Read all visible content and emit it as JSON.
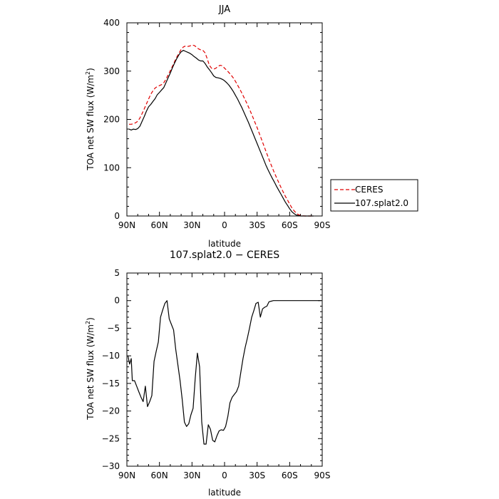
{
  "chart_data": [
    {
      "type": "line",
      "title": "JJA",
      "xlabel": "latitude",
      "ylabel": "TOA net SW flux (W/m²)",
      "ylabel_parts": {
        "main": "TOA net SW flux (W/m",
        "sup": "2",
        "tail": ")"
      },
      "xlim": [
        90,
        -90
      ],
      "ylim": [
        0,
        400
      ],
      "x_ticks": [
        {
          "value": 90,
          "label": "90N"
        },
        {
          "value": 60,
          "label": "60N"
        },
        {
          "value": 30,
          "label": "30N"
        },
        {
          "value": 0,
          "label": "0"
        },
        {
          "value": -30,
          "label": "30S"
        },
        {
          "value": -60,
          "label": "60S"
        },
        {
          "value": -90,
          "label": "90S"
        }
      ],
      "y_ticks": [
        {
          "value": 0,
          "label": "0"
        },
        {
          "value": 100,
          "label": "100"
        },
        {
          "value": 200,
          "label": "200"
        },
        {
          "value": 300,
          "label": "300"
        },
        {
          "value": 400,
          "label": "400"
        }
      ],
      "legend_position": "outside-right-bottom",
      "series": [
        {
          "name": "CERES",
          "color": "#e00000",
          "dash": "dashed",
          "x": [
            88,
            86,
            84,
            82,
            80,
            78,
            76,
            74,
            72,
            70,
            68,
            66,
            64,
            62,
            60,
            58,
            56,
            54,
            52,
            50,
            48,
            46,
            44,
            42,
            40,
            38,
            36,
            34,
            32,
            30,
            28,
            26,
            24,
            22,
            20,
            18,
            16,
            14,
            12,
            10,
            8,
            6,
            4,
            2,
            0,
            -2,
            -4,
            -6,
            -8,
            -10,
            -12,
            -14,
            -16,
            -18,
            -20,
            -22,
            -24,
            -26,
            -28,
            -30,
            -32,
            -34,
            -36,
            -38,
            -40,
            -42,
            -44,
            -46,
            -48,
            -50,
            -52,
            -54,
            -56,
            -58,
            -60,
            -62,
            -64,
            -66,
            -68,
            -70,
            -72,
            -74,
            -76,
            -78,
            -80,
            -82
          ],
          "y": [
            190,
            190,
            191,
            193,
            196,
            203,
            212,
            222,
            232,
            242,
            252,
            259,
            265,
            268,
            270,
            272,
            276,
            283,
            292,
            301,
            310,
            320,
            329,
            337,
            345,
            350,
            352,
            351,
            352,
            354,
            353,
            350,
            346,
            344,
            343,
            338,
            326,
            312,
            306,
            304,
            306,
            310,
            312,
            311,
            306,
            302,
            297,
            292,
            286,
            279,
            271,
            263,
            254,
            245,
            236,
            226,
            216,
            205,
            194,
            183,
            171,
            159,
            147,
            135,
            123,
            111,
            100,
            89,
            79,
            69,
            59,
            50,
            41,
            33,
            25,
            17,
            11,
            6,
            3,
            1,
            0.5,
            0,
            0,
            0,
            0,
            0
          ]
        },
        {
          "name": "107.splat2.0",
          "color": "#000000",
          "dash": "solid",
          "x": [
            88,
            86,
            84,
            82,
            80,
            78,
            76,
            74,
            72,
            70,
            68,
            66,
            64,
            62,
            60,
            58,
            56,
            54,
            52,
            50,
            48,
            46,
            44,
            42,
            40,
            38,
            36,
            34,
            32,
            30,
            28,
            26,
            24,
            22,
            20,
            18,
            16,
            14,
            12,
            10,
            8,
            6,
            4,
            2,
            0,
            -2,
            -4,
            -6,
            -8,
            -10,
            -12,
            -14,
            -16,
            -18,
            -20,
            -22,
            -24,
            -26,
            -28,
            -30,
            -32,
            -34,
            -36,
            -38,
            -40,
            -42,
            -44,
            -46,
            -48,
            -50,
            -52,
            -54,
            -56,
            -58,
            -60,
            -62,
            -64,
            -66,
            -68,
            -70,
            -72,
            -74,
            -76,
            -78,
            -80,
            -82
          ],
          "y": [
            180,
            178,
            180,
            179,
            181,
            186,
            196,
            206,
            217,
            226,
            231,
            237,
            243,
            251,
            256,
            261,
            266,
            276,
            286,
            296,
            307,
            317,
            326,
            334,
            340,
            343,
            341,
            339,
            337,
            334,
            330,
            327,
            323,
            321,
            321,
            316,
            309,
            303,
            297,
            290,
            287,
            286,
            285,
            283,
            280,
            276,
            271,
            265,
            258,
            250,
            242,
            233,
            224,
            214,
            204,
            194,
            183,
            172,
            161,
            150,
            139,
            128,
            117,
            106,
            96,
            87,
            78,
            70,
            61,
            53,
            45,
            37,
            29,
            22,
            15,
            9,
            5,
            2,
            1,
            0,
            0,
            0,
            0,
            0,
            0,
            0
          ]
        }
      ]
    },
    {
      "type": "line",
      "title": "107.splat2.0 − CERES",
      "xlabel": "latitude",
      "ylabel": "TOA net SW flux (W/m²)",
      "ylabel_parts": {
        "main": "TOA net SW flux (W/m",
        "sup": "2",
        "tail": ")"
      },
      "xlim": [
        90,
        -90
      ],
      "ylim": [
        -30,
        5
      ],
      "x_ticks": [
        {
          "value": 90,
          "label": "90N"
        },
        {
          "value": 60,
          "label": "60N"
        },
        {
          "value": 30,
          "label": "30N"
        },
        {
          "value": 0,
          "label": "0"
        },
        {
          "value": -30,
          "label": "30S"
        },
        {
          "value": -60,
          "label": "60S"
        },
        {
          "value": -90,
          "label": "90S"
        }
      ],
      "y_ticks": [
        {
          "value": -30,
          "label": "−30"
        },
        {
          "value": -25,
          "label": "−25"
        },
        {
          "value": -20,
          "label": "−20"
        },
        {
          "value": -15,
          "label": "−15"
        },
        {
          "value": -10,
          "label": "−10"
        },
        {
          "value": -5,
          "label": "−5"
        },
        {
          "value": 0,
          "label": "0"
        },
        {
          "value": 5,
          "label": "5"
        }
      ],
      "series": [
        {
          "color": "#000000",
          "dash": "solid",
          "x": [
            89,
            87.5,
            86,
            85,
            83,
            81,
            79,
            77,
            75,
            73,
            71,
            69,
            67,
            65,
            63,
            61,
            59,
            57,
            55,
            53,
            51,
            49,
            47,
            45,
            43,
            41,
            39,
            37,
            35,
            33,
            31,
            29,
            27,
            25,
            23,
            21,
            19,
            17,
            15,
            13,
            11,
            9,
            7,
            5,
            3,
            1,
            -1,
            -3,
            -5,
            -7,
            -9,
            -11,
            -13,
            -15,
            -17,
            -19,
            -21,
            -23,
            -25,
            -27,
            -29,
            -31,
            -33,
            -35,
            -37,
            -39,
            -41,
            -43,
            -45,
            -47,
            -49,
            -51,
            -53,
            -55,
            -57,
            -59,
            -61,
            -63,
            -65,
            -67,
            -69,
            -71,
            -73,
            -75,
            -77,
            -79,
            -81,
            -83,
            -85,
            -87,
            -89
          ],
          "y": [
            -10,
            -11.5,
            -10.5,
            -14.5,
            -14.5,
            -15.5,
            -16.5,
            -17.5,
            -18.3,
            -15.5,
            -19.2,
            -18.3,
            -17.2,
            -11.0,
            -9.2,
            -7.5,
            -3.0,
            -1.7,
            -0.5,
            0.0,
            -3.3,
            -4.3,
            -5.3,
            -8.8,
            -11.6,
            -14.5,
            -17.9,
            -22.0,
            -22.8,
            -22.3,
            -20.7,
            -19.5,
            -14.0,
            -9.5,
            -12.0,
            -22.0,
            -26.0,
            -26.0,
            -22.5,
            -23.3,
            -25.3,
            -25.6,
            -24.5,
            -23.6,
            -23.4,
            -23.5,
            -22.8,
            -21.0,
            -18.5,
            -17.5,
            -17.0,
            -16.5,
            -15.5,
            -13.0,
            -10.5,
            -8.5,
            -6.8,
            -5.0,
            -3.0,
            -1.8,
            -0.5,
            -0.3,
            -3.0,
            -1.5,
            -1.2,
            -1.0,
            -0.2,
            -0.1,
            0.0,
            0.0,
            0.0,
            0.0,
            0.0,
            0.0,
            0.0,
            0.0,
            0.0,
            0.0,
            0.0,
            0.0,
            0.0,
            0.0,
            0.0,
            0.0,
            0.0,
            0.0,
            0.0,
            0.0,
            0.0,
            0.0,
            0.0
          ]
        }
      ]
    }
  ]
}
